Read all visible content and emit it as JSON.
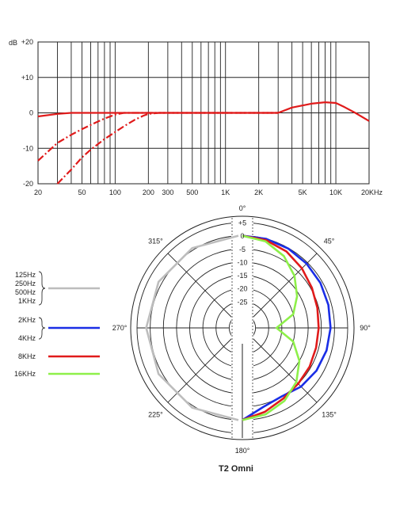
{
  "chart_data": [
    {
      "type": "line",
      "x_scale": "log",
      "xlim": [
        20,
        20000
      ],
      "ylim": [
        -20,
        20
      ],
      "y_unit_label": "dB",
      "y_ticks": [
        "+20",
        "+10",
        "0",
        "-10",
        "-20"
      ],
      "y_tick_values": [
        20,
        10,
        0,
        -10,
        -20
      ],
      "x_ticks": [
        "20",
        "50",
        "100",
        "200",
        "300",
        "500",
        "1K",
        "2K",
        "5K",
        "10K",
        "20KHz"
      ],
      "x_tick_values": [
        20,
        50,
        100,
        200,
        300,
        500,
        1000,
        2000,
        5000,
        10000,
        20000
      ],
      "grid": true,
      "series": [
        {
          "style": "solid",
          "color": "#e01b1b",
          "x": [
            20,
            30,
            40,
            60,
            100,
            200,
            1000,
            3000,
            4000,
            6000,
            8000,
            10000,
            12000,
            15000,
            20000
          ],
          "y": [
            -1,
            -0.3,
            0,
            0,
            0,
            0,
            0,
            0,
            1.5,
            2.6,
            3,
            2.8,
            1.6,
            0,
            -2.3
          ]
        },
        {
          "style": "dashed",
          "color": "#e01b1b",
          "x": [
            20,
            30,
            40,
            50,
            60,
            80,
            100,
            120,
            150,
            200,
            1000,
            3000
          ],
          "y": [
            -13.5,
            -8.5,
            -6.2,
            -4.6,
            -3.4,
            -1.6,
            -0.5,
            0,
            0,
            0,
            0,
            0
          ]
        },
        {
          "style": "dashed",
          "color": "#e01b1b",
          "x": [
            30,
            40,
            50,
            60,
            80,
            100,
            120,
            150,
            180,
            200,
            250,
            1000,
            3000
          ],
          "y": [
            -20,
            -16,
            -12.6,
            -10.4,
            -7.4,
            -5.4,
            -3.8,
            -2,
            -0.8,
            -0.3,
            0,
            0,
            0
          ]
        }
      ]
    },
    {
      "type": "polar",
      "title": "T2 Omni",
      "angle_labels": [
        "0°",
        "45°",
        "90°",
        "135°",
        "180°",
        "225°",
        "270°",
        "315°"
      ],
      "angle_values": [
        0,
        45,
        90,
        135,
        180,
        225,
        270,
        315
      ],
      "ring_labels": [
        "+5",
        "0",
        "-5",
        "-10",
        "-15",
        "-20",
        "-25"
      ],
      "ring_values": [
        5,
        0,
        -5,
        -10,
        -15,
        -20,
        -25
      ],
      "r_min": -35,
      "r_max": 5,
      "series": [
        {
          "name": "125Hz 250Hz 500Hz 1KHz",
          "color": "#bdbdbd",
          "symmetric": true,
          "angles": [
            0,
            30,
            60,
            90,
            120,
            150,
            180
          ],
          "values": [
            0,
            0,
            0,
            0,
            0,
            0,
            0
          ]
        },
        {
          "name": "2KHz 4KHz",
          "color": "#1a2ee6",
          "symmetric": false,
          "angles": [
            0,
            15,
            30,
            45,
            60,
            75,
            90,
            105,
            120,
            135,
            150,
            165,
            180
          ],
          "values": [
            0,
            0,
            -0.2,
            -0.5,
            -0.8,
            -1.2,
            -1.5,
            -1.9,
            -2.5,
            -3.5,
            -5,
            -4,
            0
          ]
        },
        {
          "name": "8KHz",
          "color": "#e01b1b",
          "symmetric": false,
          "angles": [
            0,
            15,
            30,
            45,
            60,
            75,
            90,
            105,
            120,
            135,
            150,
            165,
            180
          ],
          "values": [
            0,
            -0.5,
            -1.5,
            -3,
            -4.5,
            -5.5,
            -6,
            -6,
            -5.5,
            -5,
            -4,
            -2,
            0
          ]
        },
        {
          "name": "16KHz",
          "color": "#8ef04a",
          "symmetric": false,
          "angles": [
            0,
            15,
            30,
            45,
            60,
            75,
            90,
            105,
            120,
            135,
            150,
            165,
            180
          ],
          "values": [
            0,
            -1,
            -3.5,
            -7,
            -11,
            -15,
            -22,
            -15,
            -10,
            -6,
            -3,
            -1,
            0
          ]
        }
      ],
      "legend": {
        "group1": [
          "125Hz",
          "250Hz",
          "500Hz",
          "1KHz"
        ],
        "group2": [
          "2KHz",
          "4KHz"
        ],
        "item3": "8KHz",
        "item4": "16KHz"
      }
    }
  ]
}
